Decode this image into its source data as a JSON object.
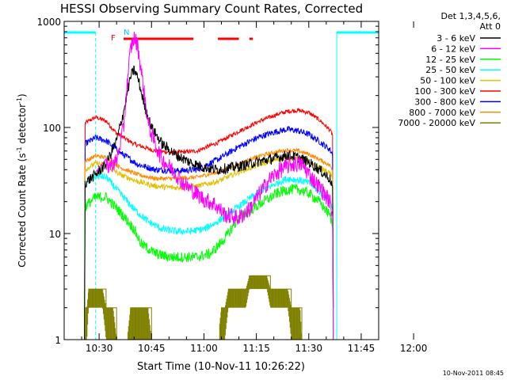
{
  "chart_data": {
    "type": "line",
    "title": "HESSI Observing Summary Count Rates, Corrected",
    "xlabel": "Start Time (10-Nov-11 10:26:22)",
    "ylabel_main": "Corrected Count Rate (s",
    "ylabel_sup": "-1",
    "ylabel_tail": " detector",
    "ylabel_end": ")",
    "y_scale": "log",
    "ylim": [
      1,
      1000
    ],
    "x_range_min": [
      -6,
      84
    ],
    "x_tick_labels": [
      "10:30",
      "10:45",
      "11:00",
      "11:15",
      "11:30",
      "11:45",
      "12:00"
    ],
    "x_tick_min": [
      4,
      19,
      34,
      49,
      64,
      79,
      94
    ],
    "y_tick_labels": [
      "1",
      "10",
      "100",
      "1000"
    ],
    "y_tick_values": [
      1,
      10,
      100,
      1000
    ],
    "legend": {
      "placement": "right",
      "header_line1": "Det 1,3,4,5,6,",
      "header_line2": "Att 0",
      "entries": [
        {
          "label": "3 - 6 keV",
          "color": "#000000"
        },
        {
          "label": "6 - 12 keV",
          "color": "#ff00ff"
        },
        {
          "label": "12 - 25 keV",
          "color": "#00ff00"
        },
        {
          "label": "25 - 50 keV",
          "color": "#00ffff"
        },
        {
          "label": "50 - 100 keV",
          "color": "#e0c000"
        },
        {
          "label": "100 - 300 keV",
          "color": "#ff0000"
        },
        {
          "label": "300 - 800 keV",
          "color": "#0000ff"
        },
        {
          "label": "800 - 7000 keV",
          "color": "#ff8c00"
        },
        {
          "label": "7000 - 20000 keV",
          "color": "#808000"
        }
      ]
    },
    "flags": {
      "night_label": "N",
      "flare_label": "F",
      "night_color": "#00ffff",
      "flare_color": "#ff0000",
      "night_bars_min": [
        [
          -6,
          3
        ],
        [
          72,
          84
        ]
      ],
      "night_boundaries_min": [
        3,
        72,
        86
      ],
      "flare_bars_min": [
        [
          11,
          31
        ],
        [
          38,
          44
        ],
        [
          47,
          48
        ]
      ]
    },
    "series": [
      {
        "color": "#ff0000",
        "x": [
          -0.2,
          0,
          3,
          6,
          9,
          14,
          20,
          26,
          32,
          38,
          44,
          50,
          55,
          58,
          61,
          64,
          67,
          70,
          70.8,
          71
        ],
        "y": [
          1,
          110,
          125,
          115,
          88,
          70,
          60,
          58,
          60,
          72,
          92,
          115,
          133,
          142,
          145,
          138,
          118,
          95,
          85,
          1
        ]
      },
      {
        "color": "#0000ff",
        "x": [
          -0.2,
          0,
          3,
          6,
          10,
          15,
          20,
          26,
          32,
          38,
          44,
          50,
          55,
          58,
          61,
          64,
          67,
          70,
          70.8,
          71
        ],
        "y": [
          1,
          70,
          80,
          75,
          58,
          45,
          40,
          39,
          40,
          50,
          66,
          82,
          92,
          96,
          93,
          86,
          74,
          62,
          56,
          1
        ]
      },
      {
        "color": "#ff8c00",
        "x": [
          -0.2,
          0,
          3,
          6,
          10,
          15,
          20,
          26,
          32,
          38,
          44,
          50,
          55,
          58,
          61,
          64,
          67,
          70,
          70.8,
          71
        ],
        "y": [
          1,
          48,
          54,
          52,
          42,
          36,
          33,
          33,
          34,
          38,
          45,
          54,
          59,
          61,
          60,
          56,
          50,
          44,
          40,
          1
        ]
      },
      {
        "color": "#e0c000",
        "x": [
          -0.2,
          0,
          3,
          6,
          10,
          15,
          20,
          26,
          32,
          38,
          44,
          50,
          55,
          58,
          61,
          64,
          67,
          70,
          70.8,
          71
        ],
        "y": [
          1,
          40,
          46,
          44,
          36,
          31,
          28,
          27,
          28,
          31,
          38,
          45,
          50,
          52,
          50,
          47,
          42,
          37,
          33,
          1
        ]
      },
      {
        "color": "#00ffff",
        "x": [
          -0.2,
          0,
          3,
          6,
          10,
          14,
          18,
          22,
          26,
          30,
          34,
          38,
          44,
          50,
          55,
          58,
          61,
          64,
          67,
          70,
          70.8,
          71
        ],
        "y": [
          1,
          28,
          35,
          34,
          24,
          17,
          13,
          11,
          10.5,
          10.5,
          11,
          13,
          18,
          25,
          30,
          33,
          32,
          30,
          25,
          20,
          18,
          1
        ]
      },
      {
        "color": "#00ff00",
        "x": [
          -0.2,
          0,
          3,
          6,
          10,
          14,
          16,
          20,
          24,
          28,
          32,
          36,
          40,
          44,
          50,
          55,
          58,
          61,
          64,
          67,
          70,
          70.8,
          71
        ],
        "y": [
          1,
          18,
          22,
          22,
          16,
          11,
          8,
          6.5,
          6,
          6,
          6,
          6.5,
          9,
          14,
          19,
          24,
          26,
          26,
          24,
          20,
          15,
          12,
          3
        ]
      },
      {
        "color": "#000000",
        "x": [
          -0.2,
          0,
          3,
          6,
          9,
          11,
          13,
          14,
          15,
          17,
          19,
          22,
          26,
          30,
          34,
          38,
          44,
          50,
          55,
          58,
          61,
          64,
          67,
          70,
          70.8,
          71
        ],
        "y": [
          1,
          30,
          36,
          45,
          75,
          140,
          300,
          350,
          300,
          160,
          100,
          70,
          55,
          47,
          42,
          40,
          43,
          48,
          52,
          55,
          52,
          47,
          40,
          33,
          28,
          2
        ]
      },
      {
        "color": "#ff00ff",
        "x": [
          3,
          6,
          9,
          11,
          12,
          13,
          14,
          15,
          16,
          17,
          18,
          20,
          22,
          25,
          28,
          31,
          34,
          37,
          40,
          44,
          47,
          50,
          53,
          56,
          59,
          62,
          65,
          68,
          70,
          70.8,
          71
        ],
        "y": [
          38,
          42,
          48,
          100,
          250,
          550,
          700,
          600,
          350,
          200,
          110,
          70,
          50,
          40,
          30,
          25,
          21,
          19,
          15,
          14,
          17,
          24,
          33,
          40,
          45,
          45,
          33,
          25,
          20,
          15,
          1
        ]
      },
      {
        "color": "#808000",
        "x": [
          -0.2,
          0,
          0.5,
          1,
          2,
          3,
          5,
          6,
          7,
          8,
          9,
          10,
          11,
          12,
          13,
          14,
          17,
          18,
          19,
          38,
          39,
          40,
          41,
          43,
          44,
          46,
          47,
          48,
          49,
          50,
          51,
          52,
          53,
          54,
          55,
          56,
          57,
          58,
          59,
          60,
          61,
          61.5,
          62,
          62.5
        ],
        "y": [
          1,
          2,
          2,
          3,
          3,
          3,
          3,
          2,
          2,
          2,
          1,
          1,
          1,
          1,
          2,
          2,
          2,
          2,
          1,
          1,
          2,
          2,
          3,
          3,
          3,
          3,
          4,
          4,
          4,
          4,
          4,
          4,
          3,
          3,
          3,
          3,
          3,
          3,
          2,
          2,
          2,
          2,
          1,
          1
        ]
      }
    ],
    "footer_timestamp": "10-Nov-2011 08:45"
  }
}
